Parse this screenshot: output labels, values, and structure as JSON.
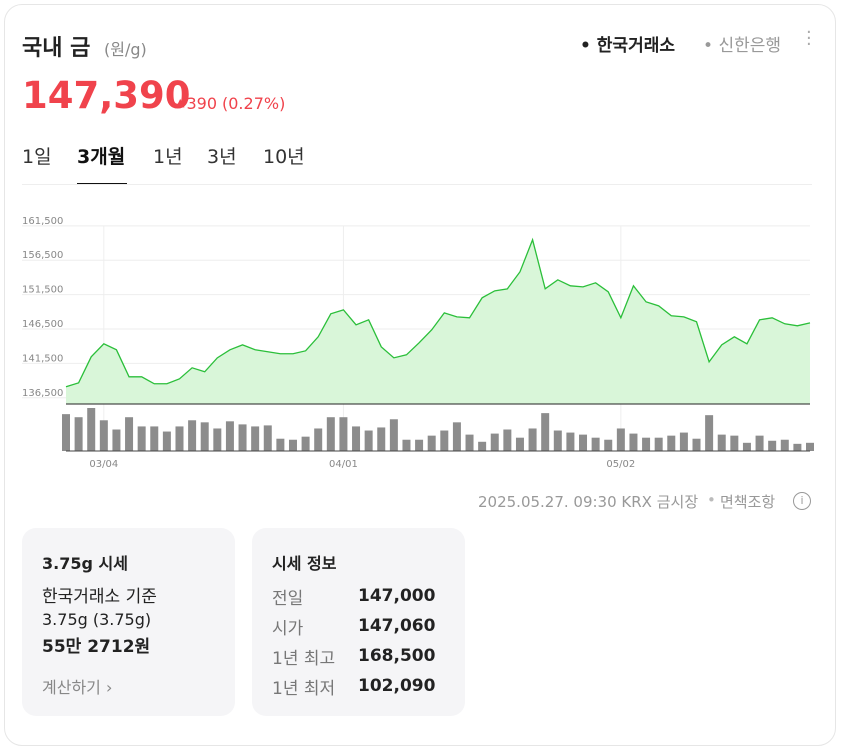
{
  "header": {
    "title": "국내 금",
    "unit": "(원/g)",
    "sources": [
      "한국거래소",
      "신한은행"
    ]
  },
  "price": {
    "value": "147,390",
    "change": "390",
    "change_pct": "(0.27%)"
  },
  "tabs": [
    "1일",
    "3개월",
    "1년",
    "3년",
    "10년"
  ],
  "active_tab": 1,
  "chart_data": {
    "type": "line",
    "color": "#2bbf3a",
    "fill": "#d9f6d9",
    "volume_color": "#8c8c8c",
    "categories": [
      null,
      null,
      null,
      "03/04",
      null,
      null,
      null,
      null,
      null,
      null,
      null,
      null,
      null,
      null,
      null,
      null,
      null,
      null,
      null,
      null,
      null,
      null,
      "04/01",
      null,
      null,
      null,
      null,
      null,
      null,
      null,
      null,
      null,
      null,
      null,
      null,
      null,
      null,
      null,
      null,
      null,
      null,
      null,
      null,
      null,
      "05/02",
      null,
      null,
      null,
      null,
      null,
      null,
      null,
      null,
      null,
      null,
      null,
      null,
      null,
      null,
      null
    ],
    "values": [
      138100,
      138680,
      142460,
      144350,
      143480,
      139550,
      139550,
      138540,
      138540,
      139260,
      140860,
      140280,
      142310,
      143480,
      144200,
      143480,
      143190,
      142900,
      142900,
      143330,
      145370,
      148710,
      149290,
      147110,
      147840,
      143910,
      142310,
      142750,
      144490,
      146380,
      148850,
      148270,
      148130,
      151040,
      152050,
      152340,
      154810,
      159470,
      152340,
      153650,
      152780,
      152630,
      153220,
      151910,
      148130,
      152780,
      150450,
      149870,
      148420,
      148270,
      147550,
      141730,
      144200,
      145370,
      144350,
      147840,
      148130,
      147260,
      146970,
      147400
    ],
    "volumes": [
      36,
      33,
      42,
      30,
      21,
      33,
      24,
      24,
      19,
      24,
      30,
      28,
      22,
      29,
      26,
      24,
      25,
      12,
      11,
      14,
      22,
      33,
      33,
      24,
      20,
      23,
      31,
      11,
      11,
      15,
      20,
      28,
      16,
      9,
      17,
      21,
      13,
      22,
      37,
      20,
      18,
      16,
      13,
      11,
      22,
      17,
      13,
      13,
      15,
      18,
      12,
      35,
      16,
      15,
      8,
      15,
      10,
      11,
      7,
      8
    ],
    "ylim": [
      135600,
      163800
    ],
    "yticks": [
      {
        "value": 136500,
        "label": "136,500"
      },
      {
        "value": 141500,
        "label": "141,500"
      },
      {
        "value": 146500,
        "label": "146,500"
      },
      {
        "value": 151500,
        "label": "151,500"
      },
      {
        "value": 156500,
        "label": "156,500"
      },
      {
        "value": 161500,
        "label": "161,500"
      }
    ],
    "grid": true
  },
  "footer": {
    "timestamp": "2025.05.27. 09:30 KRX 금시장",
    "disclaimer": "면책조항"
  },
  "cards": [
    {
      "title": "3.75g 시세",
      "lines": [
        "한국거래소 기준",
        "3.75g (3.75g)",
        "55만 2712원"
      ],
      "link": "계산하기"
    },
    {
      "title": "시세 정보",
      "rows": [
        [
          "전일",
          "147,000"
        ],
        [
          "시가",
          "147,060"
        ],
        [
          "1년 최고",
          "168,500"
        ],
        [
          "1년 최저",
          "102,090"
        ]
      ]
    }
  ]
}
